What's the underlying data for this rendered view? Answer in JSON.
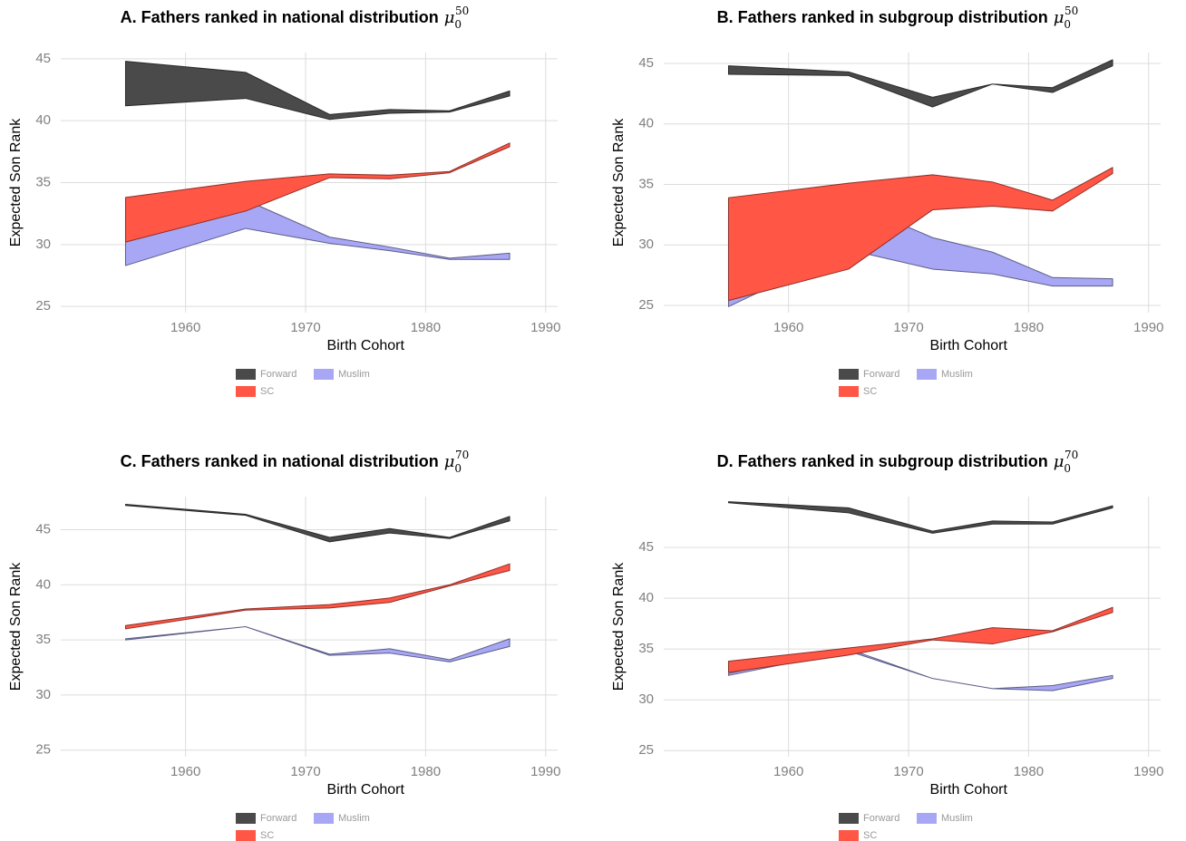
{
  "chart_data": [
    {
      "type": "range",
      "title": "A. Fathers ranked in national distribution",
      "title_symbol": "μ",
      "title_subscript": "0",
      "title_superscript": "50",
      "x_label": "Birth Cohort",
      "y_label": "Expected Son Rank",
      "legend": "bottom",
      "grid": true,
      "x": [
        1955,
        1965,
        1972,
        1977,
        1982,
        1987
      ],
      "xlim": [
        1949.6,
        1991
      ],
      "xticks": [
        1960,
        1970,
        1980,
        1990
      ],
      "ylim": [
        24.5,
        45.5
      ],
      "yticks": [
        25,
        30,
        35,
        40,
        45
      ],
      "series": [
        {
          "name": "Forward",
          "color": "#4a4a4a",
          "lower": [
            41.2,
            41.8,
            40.1,
            40.6,
            40.7,
            42.0
          ],
          "upper": [
            44.8,
            43.9,
            40.5,
            40.9,
            40.8,
            42.4
          ]
        },
        {
          "name": "SC",
          "color": "#ff5646",
          "lower": [
            30.2,
            32.7,
            35.4,
            35.3,
            35.8,
            37.9
          ],
          "upper": [
            33.8,
            35.1,
            35.7,
            35.6,
            35.9,
            38.2
          ]
        },
        {
          "name": "Muslim",
          "color": "#a7a7f5",
          "lower": [
            28.3,
            31.3,
            30.1,
            29.5,
            28.8,
            28.8
          ],
          "upper": [
            32.4,
            33.6,
            30.6,
            29.8,
            28.9,
            29.3
          ]
        }
      ]
    },
    {
      "type": "range",
      "title": "B. Fathers ranked in subgroup distribution",
      "title_symbol": "μ",
      "title_subscript": "0",
      "title_superscript": "50",
      "x_label": "Birth Cohort",
      "y_label": "Expected Son Rank",
      "legend": "bottom",
      "grid": true,
      "x": [
        1955,
        1965,
        1972,
        1977,
        1982,
        1987
      ],
      "xlim": [
        1949.6,
        1991
      ],
      "xticks": [
        1960,
        1970,
        1980,
        1990
      ],
      "ylim": [
        24.4,
        45.9
      ],
      "yticks": [
        25,
        30,
        35,
        40,
        45
      ],
      "series": [
        {
          "name": "Forward",
          "color": "#4a4a4a",
          "lower": [
            44.1,
            44.0,
            41.4,
            43.3,
            42.6,
            44.8
          ],
          "upper": [
            44.8,
            44.3,
            42.2,
            43.3,
            43.0,
            45.3
          ]
        },
        {
          "name": "SC",
          "color": "#ff5646",
          "lower": [
            25.4,
            28.0,
            32.9,
            33.2,
            32.8,
            35.9
          ],
          "upper": [
            33.9,
            35.1,
            35.8,
            35.2,
            33.7,
            36.4
          ]
        },
        {
          "name": "Muslim",
          "color": "#a7a7f5",
          "lower": [
            24.9,
            29.6,
            28.0,
            27.6,
            26.6,
            26.6
          ],
          "upper": [
            32.4,
            33.6,
            30.6,
            29.4,
            27.3,
            27.2
          ]
        }
      ]
    },
    {
      "type": "range",
      "title": "C. Fathers ranked in national distribution",
      "title_symbol": "μ",
      "title_subscript": "0",
      "title_superscript": "70",
      "x_label": "Birth Cohort",
      "y_label": "Expected Son Rank",
      "legend": "bottom",
      "grid": true,
      "x": [
        1955,
        1965,
        1972,
        1977,
        1982,
        1987
      ],
      "xlim": [
        1949.6,
        1991
      ],
      "xticks": [
        1960,
        1970,
        1980,
        1990
      ],
      "ylim": [
        24.4,
        48
      ],
      "yticks": [
        25,
        30,
        35,
        40,
        45
      ],
      "series": [
        {
          "name": "Forward",
          "color": "#4a4a4a",
          "lower": [
            47.2,
            46.3,
            43.9,
            44.7,
            44.2,
            45.8
          ],
          "upper": [
            47.3,
            46.4,
            44.3,
            45.1,
            44.3,
            46.2
          ]
        },
        {
          "name": "SC",
          "color": "#ff5646",
          "lower": [
            36.0,
            37.7,
            37.9,
            38.4,
            39.9,
            41.3
          ],
          "upper": [
            36.3,
            37.8,
            38.2,
            38.8,
            40.0,
            41.9
          ]
        },
        {
          "name": "Muslim",
          "color": "#a7a7f5",
          "lower": [
            35.0,
            36.2,
            33.6,
            33.8,
            33.0,
            34.4
          ],
          "upper": [
            35.1,
            36.2,
            33.7,
            34.2,
            33.2,
            35.1
          ]
        }
      ]
    },
    {
      "type": "range",
      "title": "D. Fathers ranked in subgroup distribution",
      "title_symbol": "μ",
      "title_subscript": "0",
      "title_superscript": "70",
      "x_label": "Birth Cohort",
      "y_label": "Expected Son Rank",
      "legend": "bottom",
      "grid": true,
      "x": [
        1955,
        1965,
        1972,
        1977,
        1982,
        1987
      ],
      "xlim": [
        1949.6,
        1991
      ],
      "xticks": [
        1960,
        1970,
        1980,
        1990
      ],
      "ylim": [
        24.4,
        50
      ],
      "yticks": [
        25,
        30,
        35,
        40,
        45
      ],
      "series": [
        {
          "name": "Forward",
          "color": "#4a4a4a",
          "lower": [
            49.4,
            48.4,
            46.4,
            47.3,
            47.3,
            48.9
          ],
          "upper": [
            49.5,
            48.9,
            46.6,
            47.6,
            47.5,
            49.1
          ]
        },
        {
          "name": "SC",
          "color": "#ff5646",
          "lower": [
            32.7,
            34.4,
            35.9,
            35.5,
            36.7,
            38.6
          ],
          "upper": [
            33.8,
            35.1,
            36.0,
            37.1,
            36.8,
            39.1
          ]
        },
        {
          "name": "Muslim",
          "color": "#a7a7f5",
          "lower": [
            32.4,
            34.8,
            32.1,
            31.1,
            30.9,
            32.1
          ],
          "upper": [
            32.6,
            35.0,
            32.1,
            31.1,
            31.4,
            32.4
          ]
        }
      ]
    }
  ]
}
